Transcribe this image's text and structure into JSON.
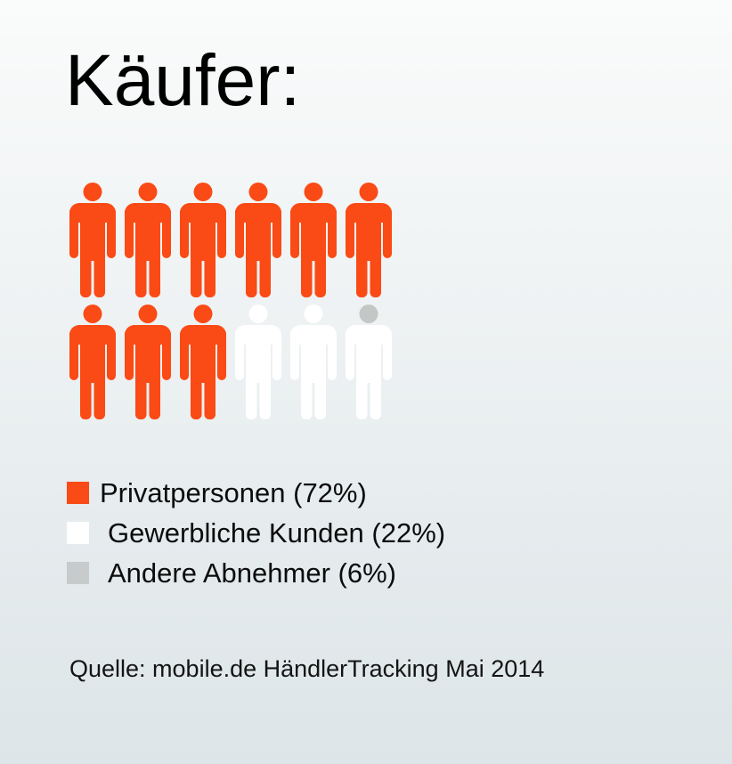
{
  "title": "Käufer:",
  "colors": {
    "orange": "#fa4a15",
    "white": "#ffffff",
    "gray": "#c7cbcb",
    "gray_head": "#c5c6c6",
    "text": "#0c0c0c",
    "bg_top": "#fafbfb",
    "bg_bottom": "#dde5e8"
  },
  "chart_data": {
    "type": "pictogram",
    "title": "Käufer:",
    "total_icons": 12,
    "series": [
      {
        "name": "Privatpersonen",
        "value_pct": 72,
        "color": "#fa4a15",
        "icons": 9
      },
      {
        "name": "Gewerbliche Kunden",
        "value_pct": 22,
        "color": "#ffffff",
        "icons": 2.5
      },
      {
        "name": "Andere Abnehmer",
        "value_pct": 6,
        "color": "#c5c6c6",
        "icons": 0.5
      }
    ],
    "legend_position": "bottom-left",
    "source": "Quelle: mobile.de HändlerTracking Mai 2014"
  },
  "pictogram": {
    "rows": [
      [
        {
          "head": "orange",
          "body": "orange"
        },
        {
          "head": "orange",
          "body": "orange"
        },
        {
          "head": "orange",
          "body": "orange"
        },
        {
          "head": "orange",
          "body": "orange"
        },
        {
          "head": "orange",
          "body": "orange"
        },
        {
          "head": "orange",
          "body": "orange"
        }
      ],
      [
        {
          "head": "orange",
          "body": "orange"
        },
        {
          "head": "orange",
          "body": "orange"
        },
        {
          "head": "orange",
          "body": "orange"
        },
        {
          "head": "white",
          "body": "white"
        },
        {
          "head": "white",
          "body": "white"
        },
        {
          "head": "gray_head",
          "body": "white"
        }
      ]
    ]
  },
  "legend": {
    "items": [
      {
        "label": "Privatpersonen (72%)",
        "color_key": "orange"
      },
      {
        "label": "Gewerbliche Kunden (22%)",
        "color_key": "white"
      },
      {
        "label": "Andere Abnehmer (6%)",
        "color_key": "gray"
      }
    ]
  },
  "source": {
    "text": "Quelle: mobile.de HändlerTracking Mai 2014"
  }
}
